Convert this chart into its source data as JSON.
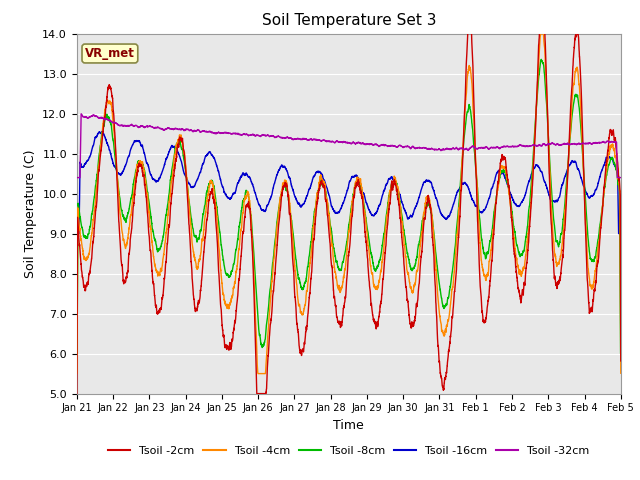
{
  "title": "Soil Temperature Set 3",
  "xlabel": "Time",
  "ylabel": "Soil Temperature (C)",
  "ylim": [
    5.0,
    14.0
  ],
  "yticks": [
    5.0,
    6.0,
    7.0,
    8.0,
    9.0,
    10.0,
    11.0,
    12.0,
    13.0,
    14.0
  ],
  "colors": {
    "Tsoil -2cm": "#cc0000",
    "Tsoil -4cm": "#ff8800",
    "Tsoil -8cm": "#00bb00",
    "Tsoil -16cm": "#0000cc",
    "Tsoil -32cm": "#aa00aa"
  },
  "bg_color": "#ffffff",
  "plot_bg_color": "#e8e8e8",
  "grid_color": "#ffffff",
  "x_tick_labels": [
    "Jan 21",
    "Jan 22",
    "Jan 23",
    "Jan 24",
    "Jan 25",
    "Jan 26",
    "Jan 27",
    "Jan 28",
    "Jan 29",
    "Jan 30",
    "Jan 31",
    "Feb 1",
    "Feb 2",
    "Feb 3",
    "Feb 4",
    "Feb 5"
  ],
  "x_tick_positions": [
    0,
    1,
    2,
    3,
    4,
    5,
    6,
    7,
    8,
    9,
    10,
    11,
    12,
    13,
    14,
    15
  ]
}
